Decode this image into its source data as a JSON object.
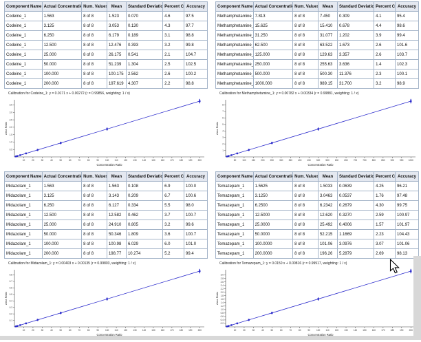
{
  "colors": {
    "table_border": "#a4b4c8",
    "header_bg": "#e4e8f0",
    "plot_blue": "#2a2acc",
    "axis_color": "#404040",
    "chrome_gray": "#d8d8d8"
  },
  "table_headers": [
    "Component Name",
    "Actual Concentration",
    "Num. Values",
    "Mean",
    "Standard Deviation",
    "Percent CV",
    "Accuracy"
  ],
  "panels": [
    {
      "component": "Codeine_1",
      "caption": "Calibration for Codeine_1: y = 0.0171 x + 0.00272 (r = 0.99856, weighting: 1 / x)",
      "rows": [
        [
          "Codeine_1",
          "1.563",
          "8 of 8",
          "1.523",
          "0.070",
          "4.6",
          "97.5"
        ],
        [
          "Codeine_1",
          "3.125",
          "8 of 8",
          "3.053",
          "0.130",
          "4.3",
          "97.7"
        ],
        [
          "Codeine_1",
          "6.250",
          "8 of 8",
          "6.179",
          "0.189",
          "3.1",
          "98.8"
        ],
        [
          "Codeine_1",
          "12.500",
          "8 of 8",
          "12.476",
          "0.393",
          "3.2",
          "99.8"
        ],
        [
          "Codeine_1",
          "25.000",
          "8 of 8",
          "26.175",
          "0.541",
          "2.1",
          "104.7"
        ],
        [
          "Codeine_1",
          "50.000",
          "8 of 8",
          "51.239",
          "1.304",
          "2.5",
          "102.5"
        ],
        [
          "Codeine_1",
          "100.000",
          "8 of 8",
          "100.175",
          "2.562",
          "2.6",
          "100.2"
        ],
        [
          "Codeine_1",
          "200.000",
          "8 of 8",
          "197.619",
          "4.307",
          "2.2",
          "98.8"
        ]
      ]
    },
    {
      "component": "Methamphetamine_",
      "caption": "Calibration for Methamphetamine_1: y = 0.00782 x + 0.00334 (r = 0.99881, weighting: 1 / x)",
      "rows": [
        [
          "Methamphetamine_",
          "7.813",
          "8 of 8",
          "7.450",
          "0.309",
          "4.1",
          "95.4"
        ],
        [
          "Methamphetamine_",
          "15.625",
          "8 of 8",
          "15.410",
          "0.678",
          "4.4",
          "98.6"
        ],
        [
          "Methamphetamine_",
          "31.250",
          "8 of 8",
          "31.077",
          "1.202",
          "3.9",
          "99.4"
        ],
        [
          "Methamphetamine_",
          "62.500",
          "8 of 8",
          "63.522",
          "1.673",
          "2.6",
          "101.6"
        ],
        [
          "Methamphetamine_",
          "125.000",
          "8 of 8",
          "129.63",
          "3.357",
          "2.6",
          "103.7"
        ],
        [
          "Methamphetamine_",
          "250.000",
          "8 of 8",
          "255.63",
          "3.636",
          "1.4",
          "102.3"
        ],
        [
          "Methamphetamine_",
          "500.000",
          "8 of 8",
          "500.30",
          "11.376",
          "2.3",
          "100.1"
        ],
        [
          "Methamphetamine_",
          "1000.000",
          "8 of 8",
          "989.15",
          "31.700",
          "3.2",
          "98.9"
        ]
      ]
    },
    {
      "component": "Midazolam_1",
      "caption": "Calibration for Midazolam_1: y = 0.00403 x + 0.00135 (r = 0.99803, weighting: 1 / x)",
      "rows": [
        [
          "Midazolam_1",
          "1.563",
          "8 of 8",
          "1.563",
          "0.108",
          "6.9",
          "100.0"
        ],
        [
          "Midazolam_1",
          "3.125",
          "8 of 8",
          "3.143",
          "0.209",
          "6.7",
          "100.6"
        ],
        [
          "Midazolam_1",
          "6.250",
          "8 of 8",
          "6.127",
          "0.334",
          "5.5",
          "98.0"
        ],
        [
          "Midazolam_1",
          "12.500",
          "8 of 8",
          "12.582",
          "0.462",
          "3.7",
          "100.7"
        ],
        [
          "Midazolam_1",
          "25.000",
          "8 of 8",
          "24.910",
          "0.805",
          "3.2",
          "99.6"
        ],
        [
          "Midazolam_1",
          "50.000",
          "8 of 8",
          "50.346",
          "1.809",
          "3.6",
          "100.7"
        ],
        [
          "Midazolam_1",
          "100.000",
          "8 of 8",
          "100.98",
          "6.029",
          "6.0",
          "101.0"
        ],
        [
          "Midazolam_1",
          "200.000",
          "8 of 8",
          "198.77",
          "10.274",
          "5.2",
          "99.4"
        ]
      ]
    },
    {
      "component": "Temazepam_1",
      "caption": "Calibration for Temazepam_1: y = 0.0150 x + 0.00816 (r = 0.99917, weighting: 1 / x)",
      "rows": [
        [
          "Temazepam_1",
          "1.5625",
          "8 of 8",
          "1.5033",
          "0.0639",
          "4.25",
          "96.21"
        ],
        [
          "Temazepam_1",
          "3.1250",
          "8 of 8",
          "3.0463",
          "0.0537",
          "1.76",
          "97.48"
        ],
        [
          "Temazepam_1",
          "6.2500",
          "8 of 8",
          "6.2342",
          "0.2679",
          "4.30",
          "99.75"
        ],
        [
          "Temazepam_1",
          "12.5000",
          "8 of 8",
          "12.620",
          "0.3270",
          "2.59",
          "100.97"
        ],
        [
          "Temazepam_1",
          "25.0000",
          "8 of 8",
          "25.492",
          "0.4006",
          "1.57",
          "101.97"
        ],
        [
          "Temazepam_1",
          "50.0000",
          "8 of 8",
          "52.215",
          "1.1669",
          "2.23",
          "104.43"
        ],
        [
          "Temazepam_1",
          "100.0000",
          "8 of 8",
          "101.06",
          "3.0976",
          "3.07",
          "101.06"
        ],
        [
          "Temazepam_1",
          "200.0000",
          "8 of 8",
          "196.26",
          "5.2879",
          "2.69",
          "98.13"
        ]
      ]
    }
  ],
  "chart_data": [
    {
      "type": "scatter",
      "title": "Calibration for Codeine_1: y = 0.0171 x + 0.00272 (r = 0.99856, weighting: 1 / x)",
      "xlabel": "Concentration Ratio",
      "ylabel": "Area Ratio",
      "x": [
        1.563,
        3.125,
        6.25,
        12.5,
        25,
        50,
        100,
        200
      ],
      "y_mean_measured": [
        1.523,
        3.053,
        6.179,
        12.476,
        26.175,
        51.239,
        100.175,
        197.619
      ],
      "xlim": [
        0,
        205
      ],
      "x_tick_step": 10,
      "y_tick_labels": [
        "0.5",
        "1.0",
        "1.5",
        "2.0",
        "2.5",
        "3.0",
        "3.5"
      ],
      "fit": "linear through origin, points on regression line",
      "legend": "none",
      "grid": false
    },
    {
      "type": "scatter",
      "title": "Calibration for Methamphetamine_1: y = 0.00782 x + 0.00334 (r = 0.99881, weighting: 1 / x)",
      "xlabel": "Concentration Ratio",
      "ylabel": "Area Ratio",
      "x": [
        7.813,
        15.625,
        31.25,
        62.5,
        125,
        250,
        500,
        1000
      ],
      "y_mean_measured": [
        7.45,
        15.41,
        31.077,
        63.522,
        129.63,
        255.63,
        500.3,
        989.15
      ],
      "xlim": [
        0,
        1025
      ],
      "x_tick_step": 50,
      "y_tick_labels": [
        "1",
        "2",
        "3",
        "4",
        "5",
        "6",
        "7",
        "8"
      ],
      "fit": "linear through origin, points on regression line",
      "legend": "none",
      "grid": false
    },
    {
      "type": "scatter",
      "title": "Calibration for Midazolam_1: y = 0.00403 x + 0.00135 (r = 0.99803, weighting: 1 / x)",
      "xlabel": "Concentration Ratio",
      "ylabel": "Area Ratio",
      "x": [
        1.563,
        3.125,
        6.25,
        12.5,
        25,
        50,
        100,
        200
      ],
      "y_mean_measured": [
        1.563,
        3.143,
        6.127,
        12.582,
        24.91,
        50.346,
        100.98,
        198.77
      ],
      "xlim": [
        0,
        205
      ],
      "x_tick_step": 10,
      "y_tick_labels": [
        "0.1",
        "0.2",
        "0.3",
        "0.4",
        "0.5",
        "0.6",
        "0.7",
        "0.8"
      ],
      "fit": "linear through origin, points on regression line",
      "legend": "none",
      "grid": false
    },
    {
      "type": "scatter",
      "title": "Calibration for Temazepam_1: y = 0.0150 x + 0.00816 (r = 0.99917, weighting: 1 / x)",
      "xlabel": "Concentration Ratio",
      "ylabel": "Area Ratio",
      "x": [
        1.5625,
        3.125,
        6.25,
        12.5,
        25,
        50,
        100,
        200
      ],
      "y_mean_measured": [
        1.5033,
        3.0463,
        6.2342,
        12.62,
        25.492,
        52.215,
        101.06,
        196.26
      ],
      "xlim": [
        0,
        205
      ],
      "x_tick_step": 10,
      "y_tick_labels": [
        "0.2",
        "0.4",
        "0.6",
        "0.8",
        "1.0",
        "1.2",
        "1.4",
        "1.6",
        "1.8",
        "2.0",
        "2.2",
        "2.4",
        "2.6",
        "2.8",
        "3.0"
      ],
      "fit": "linear through origin, points on regression line",
      "legend": "none",
      "grid": false
    }
  ]
}
